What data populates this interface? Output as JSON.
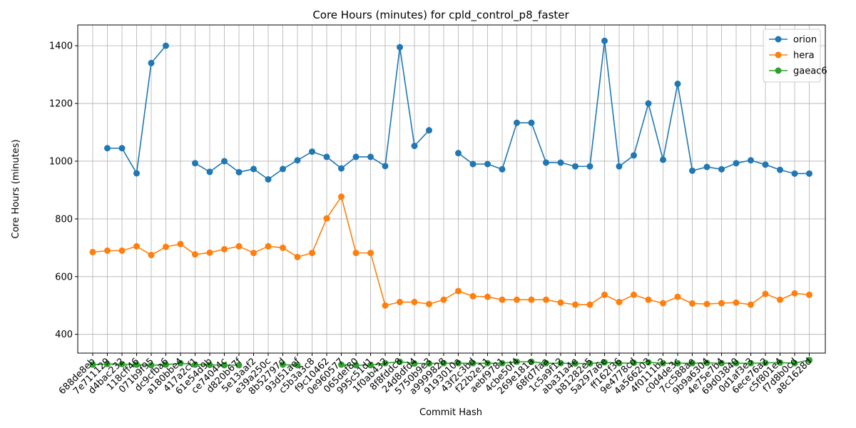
{
  "chart_data": {
    "type": "line",
    "title": "Core Hours (minutes) for cpld_control_p8_faster",
    "xlabel": "Commit Hash",
    "ylabel": "Core Hours (minutes)",
    "ylim": [
      335,
      1472
    ],
    "yticks": [
      400,
      600,
      800,
      1000,
      1200,
      1400
    ],
    "grid": true,
    "legend_position": "top-right",
    "categories": [
      "688de8eb",
      "7e711129",
      "d4bac232",
      "118cff46",
      "071b9f95",
      "dc9cfba6",
      "a180bbe4",
      "417a2cf1",
      "61e54d9b",
      "ce74044c",
      "d820b67f",
      "5e13aaf2",
      "e39a250c",
      "8b52797d",
      "93d51aef",
      "c5b3a3c8",
      "f9c10462",
      "0e960577",
      "065def80",
      "995c51d1",
      "1f0ab432",
      "8f8fddc8",
      "24d8dfd4",
      "5750b9e3",
      "a9999828",
      "9193010a",
      "43f2c3bd",
      "f22b2e11",
      "aebf9781",
      "4cbe50f4",
      "269e181a",
      "68fd7faa",
      "1c5a9f12",
      "aba31a4e",
      "b81282e5",
      "5a297a6e",
      "ff162f36",
      "9e4778cd",
      "4a566203",
      "4f0111b2",
      "c0d4de3c",
      "7cc588ae",
      "9b9a6304",
      "4e75e7b4",
      "69d03840",
      "0d1af3e3",
      "6ece76a2",
      "c5f801e4",
      "f7d8b0cd",
      "a8c1628d"
    ],
    "series": [
      {
        "name": "orion",
        "color": "#1f77b4",
        "values": [
          null,
          1045,
          1045,
          958,
          1340,
          1400,
          null,
          993,
          963,
          1000,
          962,
          973,
          937,
          973,
          1003,
          1033,
          1015,
          975,
          1015,
          1015,
          983,
          1395,
          1053,
          1107,
          null,
          1028,
          990,
          990,
          972,
          1133,
          1133,
          995,
          995,
          982,
          982,
          1417,
          982,
          1020,
          1200,
          1005,
          1268,
          967,
          980,
          972,
          993,
          1003,
          988,
          970,
          957,
          957
        ]
      },
      {
        "name": "hera",
        "color": "#ff7f0e",
        "values": [
          685,
          690,
          690,
          705,
          675,
          703,
          713,
          677,
          683,
          695,
          705,
          682,
          705,
          700,
          668,
          682,
          802,
          877,
          682,
          682,
          500,
          512,
          512,
          505,
          520,
          550,
          532,
          530,
          520,
          520,
          520,
          520,
          510,
          503,
          503,
          537,
          512,
          537,
          520,
          508,
          530,
          507,
          505,
          508,
          510,
          503,
          540,
          520,
          542,
          537
        ]
      },
      {
        "name": "gaeac6",
        "color": "#2ca02c",
        "values": [
          295,
          297,
          297,
          295,
          293,
          295,
          300,
          295,
          294,
          293,
          293,
          null,
          null,
          295,
          293,
          null,
          null,
          295,
          293,
          293,
          300,
          305,
          299,
          299,
          300,
          300,
          300,
          300,
          300,
          305,
          305,
          300,
          300,
          299,
          299,
          303,
          300,
          301,
          303,
          300,
          300,
          300,
          301,
          300,
          300,
          300,
          301,
          302,
          300,
          311
        ]
      }
    ]
  }
}
